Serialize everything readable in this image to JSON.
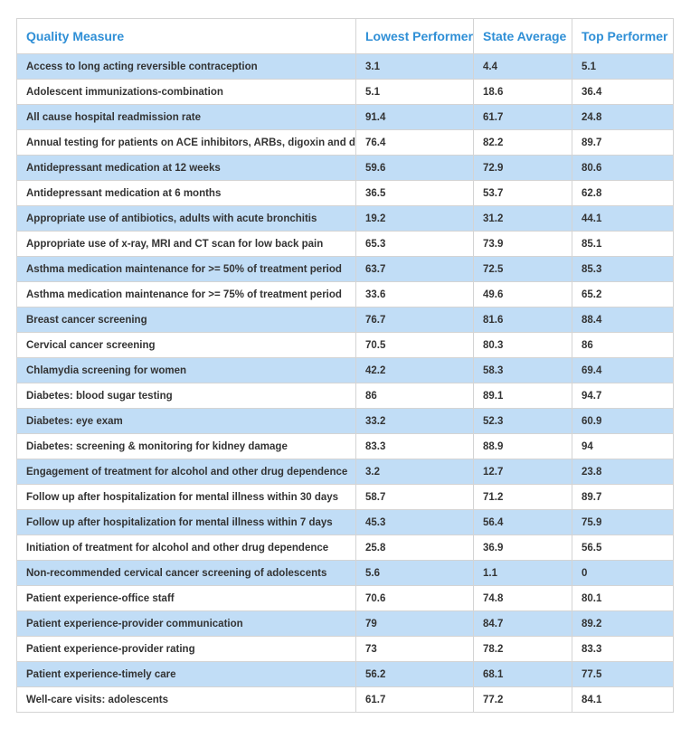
{
  "table": {
    "headers": [
      "Quality Measure",
      "Lowest Performer",
      "State Average",
      "Top Performer"
    ],
    "rows": [
      [
        "Access to long acting reversible contraception",
        "3.1",
        "4.4",
        "5.1"
      ],
      [
        "Adolescent immunizations-combination",
        "5.1",
        "18.6",
        "36.4"
      ],
      [
        "All cause hospital readmission rate",
        "91.4",
        "61.7",
        "24.8"
      ],
      [
        "Annual testing for patients on ACE inhibitors, ARBs, digoxin and diuretics",
        "76.4",
        "82.2",
        "89.7"
      ],
      [
        "Antidepressant medication at 12 weeks",
        "59.6",
        "72.9",
        "80.6"
      ],
      [
        "Antidepressant medication at 6 months",
        "36.5",
        "53.7",
        "62.8"
      ],
      [
        "Appropriate use of antibiotics, adults with acute bronchitis",
        "19.2",
        "31.2",
        "44.1"
      ],
      [
        "Appropriate use of x-ray, MRI and CT scan for low back pain",
        "65.3",
        "73.9",
        "85.1"
      ],
      [
        "Asthma medication maintenance for >= 50% of treatment period",
        "63.7",
        "72.5",
        "85.3"
      ],
      [
        "Asthma medication maintenance for >= 75% of treatment period",
        "33.6",
        "49.6",
        "65.2"
      ],
      [
        "Breast cancer screening",
        "76.7",
        "81.6",
        "88.4"
      ],
      [
        "Cervical cancer screening",
        "70.5",
        "80.3",
        "86"
      ],
      [
        "Chlamydia screening for women",
        "42.2",
        "58.3",
        "69.4"
      ],
      [
        "Diabetes: blood sugar testing",
        "86",
        "89.1",
        "94.7"
      ],
      [
        "Diabetes: eye exam",
        "33.2",
        "52.3",
        "60.9"
      ],
      [
        "Diabetes: screening & monitoring for kidney damage",
        "83.3",
        "88.9",
        "94"
      ],
      [
        "Engagement of treatment for alcohol and other drug dependence",
        "3.2",
        "12.7",
        "23.8"
      ],
      [
        "Follow up after hospitalization for mental illness within 30 days",
        "58.7",
        "71.2",
        "89.7"
      ],
      [
        "Follow up after hospitalization for mental illness within 7 days",
        "45.3",
        "56.4",
        "75.9"
      ],
      [
        "Initiation of treatment for alcohol and other drug dependence",
        "25.8",
        "36.9",
        "56.5"
      ],
      [
        "Non-recommended cervical cancer screening of adolescents",
        "5.6",
        "1.1",
        "0"
      ],
      [
        "Patient experience-office staff",
        "70.6",
        "74.8",
        "80.1"
      ],
      [
        "Patient experience-provider communication",
        "79",
        "84.7",
        "89.2"
      ],
      [
        "Patient experience-provider rating",
        "73",
        "78.2",
        "83.3"
      ],
      [
        "Patient experience-timely care",
        "56.2",
        "68.1",
        "77.5"
      ],
      [
        "Well-care visits: adolescents",
        "61.7",
        "77.2",
        "84.1"
      ]
    ]
  },
  "colors": {
    "header_text": "#2f8fd6",
    "row_stripe": "#c1ddf6",
    "border": "#d4d4d4",
    "body_text": "#333333"
  }
}
